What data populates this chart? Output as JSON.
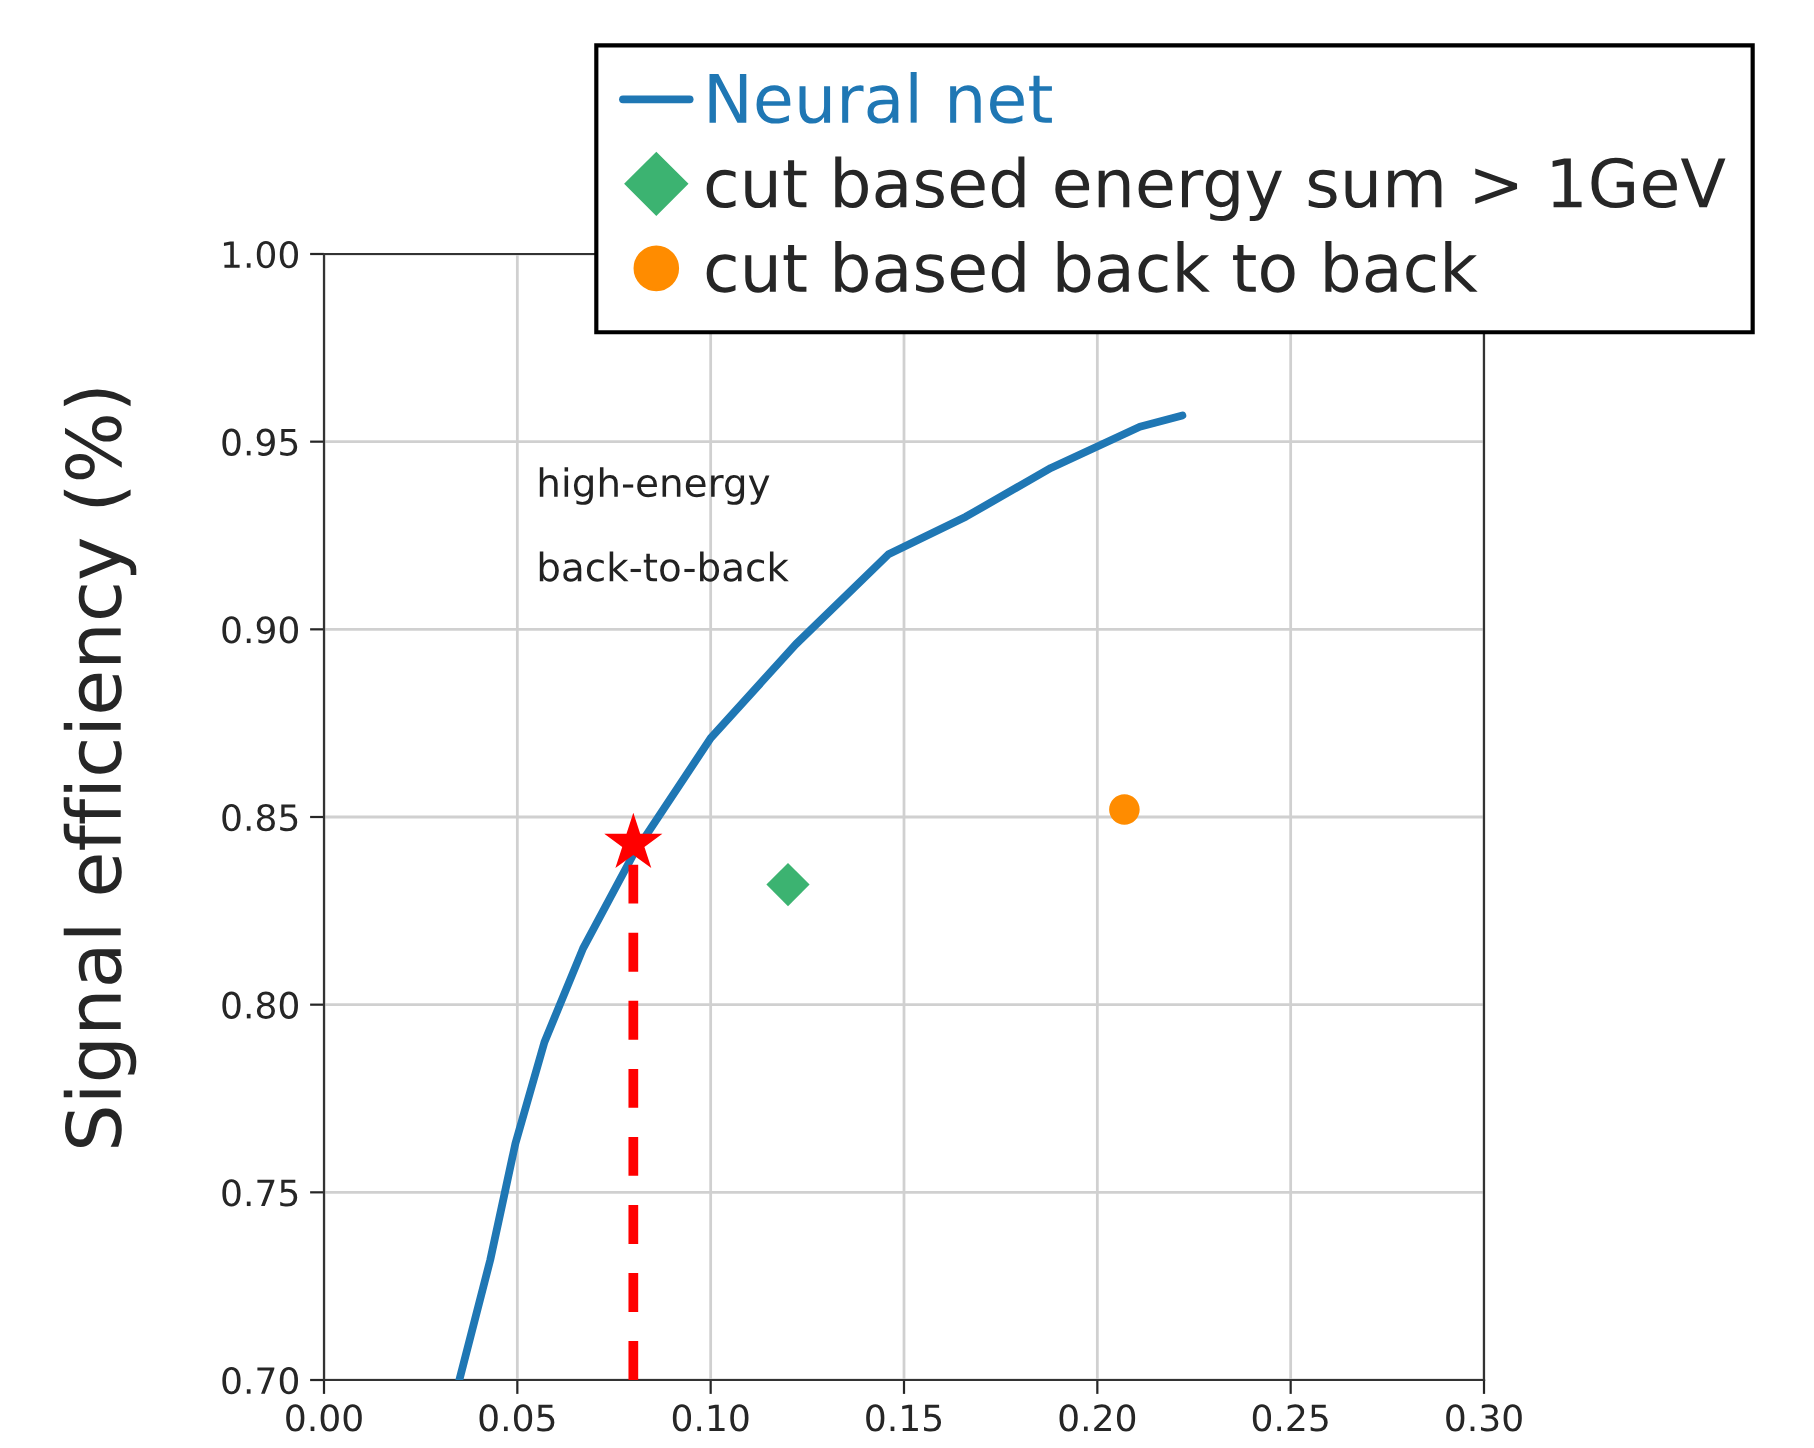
{
  "chart_data": {
    "type": "line",
    "ylabel": "Signal efficiency (%)",
    "xlim": [
      0.0,
      0.3
    ],
    "ylim": [
      0.7,
      1.0
    ],
    "xticks": [
      {
        "value": 0.0,
        "label": "0.00"
      },
      0.05,
      {
        "value": 0.1,
        "label": "0.10"
      },
      0.15,
      {
        "value": 0.2,
        "label": "0.20"
      },
      0.25,
      {
        "value": 0.3,
        "label": "0.30"
      }
    ],
    "yticks": [
      {
        "value": 0.7,
        "label": "0.70"
      },
      0.75,
      {
        "value": 0.8,
        "label": "0.80"
      },
      0.85,
      {
        "value": 0.9,
        "label": "0.90"
      },
      0.95,
      {
        "value": 1.0,
        "label": "1.00"
      }
    ],
    "grid": true,
    "legend": "top right",
    "annotations": [
      "high-energy",
      "back-to-back"
    ],
    "series": [
      {
        "name": "Neural net",
        "color": "#1f77b4",
        "marker": "none",
        "line_style": "solid",
        "x": [
          0.035,
          0.043,
          0.0495,
          0.057,
          0.067,
          0.08,
          0.1,
          0.122,
          0.146,
          0.166,
          0.188,
          0.211,
          0.222
        ],
        "values": [
          0.7,
          0.732,
          0.763,
          0.79,
          0.815,
          0.84,
          0.871,
          0.896,
          0.92,
          0.93,
          0.943,
          0.954,
          0.957
        ]
      },
      {
        "color": "#ff0000",
        "marker": "none",
        "line_style": "dashed",
        "x": [
          0.08,
          0.08
        ],
        "values": [
          0.7,
          0.843
        ]
      },
      {
        "type": "scatter",
        "color": "#ff0000",
        "marker": "star",
        "x": [
          0.08
        ],
        "values": [
          0.843
        ]
      },
      {
        "name": "cut based energy sum > 1GeV",
        "type": "scatter",
        "color": "#3cb371",
        "marker": "diamond",
        "x": [
          0.12
        ],
        "values": [
          0.832
        ]
      },
      {
        "name": "cut based back to back",
        "type": "scatter",
        "color": "#ff8c00",
        "marker": "circle",
        "x": [
          0.207
        ],
        "values": [
          0.852
        ]
      }
    ]
  }
}
